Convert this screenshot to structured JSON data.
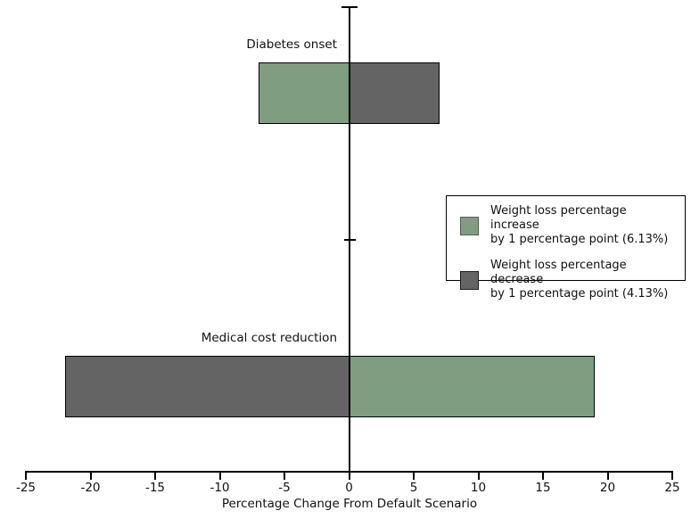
{
  "chart_data": {
    "type": "bar",
    "subtype": "horizontal-diverging-tornado",
    "title": "",
    "xlabel": "Percentage Change From Default Scenario",
    "ylabel": "",
    "xlim": [
      -25,
      25
    ],
    "xticks": [
      -25,
      -20,
      -15,
      -10,
      -5,
      0,
      5,
      10,
      15,
      20,
      25
    ],
    "grid": false,
    "categories": [
      "Diabetes onset",
      "Medical cost reduction"
    ],
    "series": [
      {
        "name": "Weight loss percentage increase by 1 percentage point (6.13%)",
        "color": "#7e9d81",
        "values": [
          -7,
          19
        ]
      },
      {
        "name": "Weight loss percentage decrease by 1 percentage point (4.13%)",
        "color": "#646464",
        "values": [
          7,
          -22
        ]
      }
    ],
    "legend": {
      "position": "middle-right",
      "entries": [
        {
          "line1": "Weight loss percentage increase",
          "line2": "by 1 percentage point (6.13%)",
          "color": "#7e9d81"
        },
        {
          "line1": "Weight loss percentage decrease",
          "line2": "by 1 percentage point (4.13%)",
          "color": "#646464"
        }
      ]
    },
    "colors": {
      "increase_green": "#7e9d81",
      "decrease_gray": "#646464",
      "axis": "#000000",
      "background": "#ffffff"
    }
  }
}
